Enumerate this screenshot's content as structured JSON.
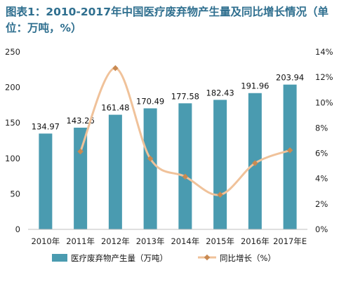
{
  "chart_data": {
    "type": "bar",
    "title": "图表1：2010-2017年中国医疗废弃物产生量及同比增长情况（单位：万吨，%）",
    "categories": [
      "2010年",
      "2011年",
      "2012年",
      "2013年",
      "2014年",
      "2015年",
      "2016年",
      "2017年E"
    ],
    "series": [
      {
        "name": "医疗废弃物产生量（万吨）",
        "type": "bar",
        "axis": "left",
        "color": "#4a9bb0",
        "values": [
          134.97,
          143.26,
          161.48,
          170.49,
          177.58,
          182.43,
          191.96,
          203.94
        ],
        "labels": [
          "134.97",
          "143.26",
          "161.48",
          "170.49",
          "177.58",
          "182.43",
          "191.96",
          "203.94"
        ]
      },
      {
        "name": "同比增长（%）",
        "type": "line",
        "axis": "right",
        "color": "#f0c29a",
        "marker_color": "#c98a52",
        "values": [
          null,
          6.14,
          12.72,
          5.58,
          4.16,
          2.73,
          5.22,
          6.24
        ]
      }
    ],
    "ylim_left": [
      0,
      250
    ],
    "yticks_left": [
      "0",
      "50",
      "100",
      "150",
      "200",
      "250"
    ],
    "ylim_right": [
      0,
      14
    ],
    "yticks_right": [
      "0%",
      "2%",
      "4%",
      "6%",
      "8%",
      "10%",
      "12%",
      "14%"
    ],
    "grid": false,
    "legend": "bottom",
    "smooth_line": true
  }
}
